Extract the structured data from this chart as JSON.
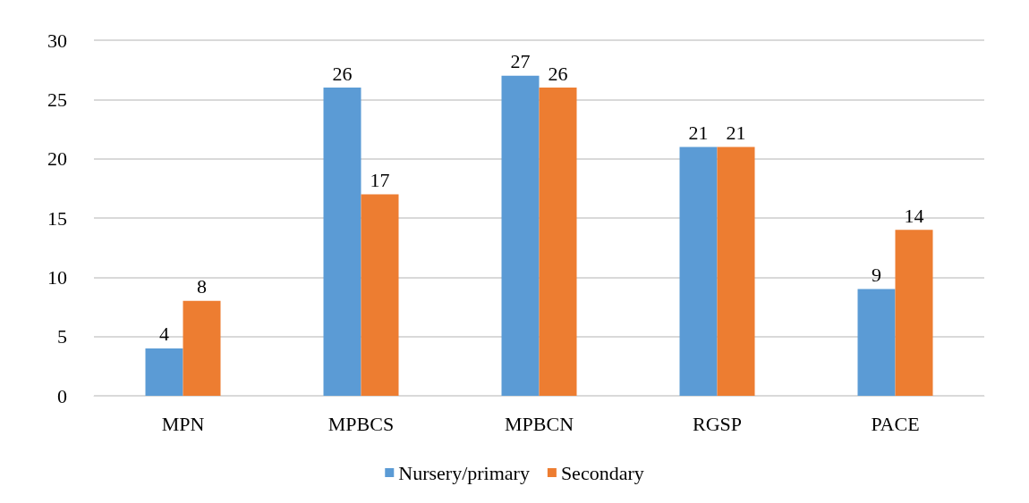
{
  "chart_data": {
    "type": "bar",
    "categories": [
      "MPN",
      "MPBCS",
      "MPBCN",
      "RGSP",
      "PACE"
    ],
    "series": [
      {
        "name": "Nursery/primary",
        "color": "#5b9bd5",
        "values": [
          4,
          26,
          27,
          21,
          9
        ]
      },
      {
        "name": "Secondary",
        "color": "#ed7d31",
        "values": [
          8,
          17,
          26,
          21,
          14
        ]
      }
    ],
    "ylim": [
      0,
      30
    ],
    "yticks": [
      0,
      5,
      10,
      15,
      20,
      25,
      30
    ],
    "grid": "y",
    "legend": "bottom",
    "data_labels": true
  }
}
